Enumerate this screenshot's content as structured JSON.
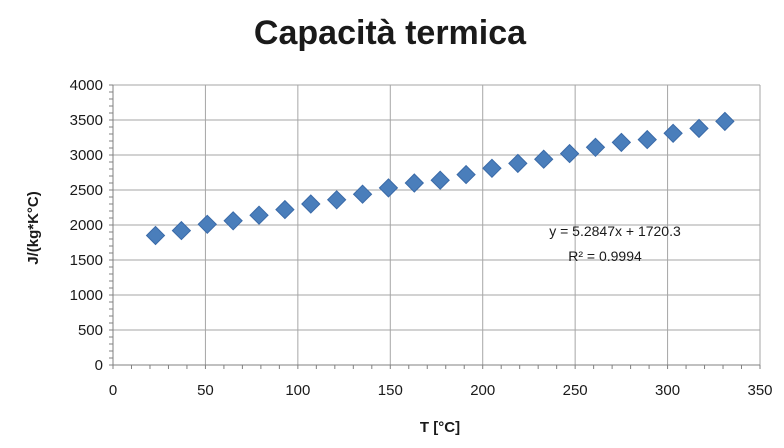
{
  "chart_data": {
    "type": "scatter",
    "title": "Capacità termica",
    "xlabel": "T [°C]",
    "ylabel": "J/(kg*K°C)",
    "xlim": [
      0,
      350
    ],
    "ylim": [
      0,
      4000
    ],
    "xticks": [
      0,
      50,
      100,
      150,
      200,
      250,
      300,
      350
    ],
    "yticks": [
      0,
      500,
      1000,
      1500,
      2000,
      2500,
      3000,
      3500,
      4000
    ],
    "x_tick_labels": [
      "0",
      "50",
      "100",
      "150",
      "200",
      "250",
      "300",
      "350"
    ],
    "y_tick_labels": [
      "0",
      "500",
      "1000",
      "1500",
      "2000",
      "2500",
      "3000",
      "3500",
      "4000"
    ],
    "grid": true,
    "legend": "none",
    "marker": "diamond",
    "color": "#4a7ebb",
    "series": [
      {
        "x": [
          23,
          37,
          51,
          65,
          79,
          93,
          107,
          121,
          135,
          149,
          163,
          177,
          191,
          205,
          219,
          233,
          247,
          261,
          275,
          289,
          303,
          317,
          331
        ],
        "y": [
          1850,
          1920,
          2010,
          2060,
          2140,
          2220,
          2300,
          2360,
          2440,
          2530,
          2600,
          2640,
          2720,
          2810,
          2880,
          2940,
          3020,
          3110,
          3180,
          3220,
          3310,
          3380,
          3480
        ]
      }
    ],
    "annotations": {
      "equation": "y = 5.2847x + 1720.3",
      "r_squared": "R² = 0.9994"
    }
  }
}
